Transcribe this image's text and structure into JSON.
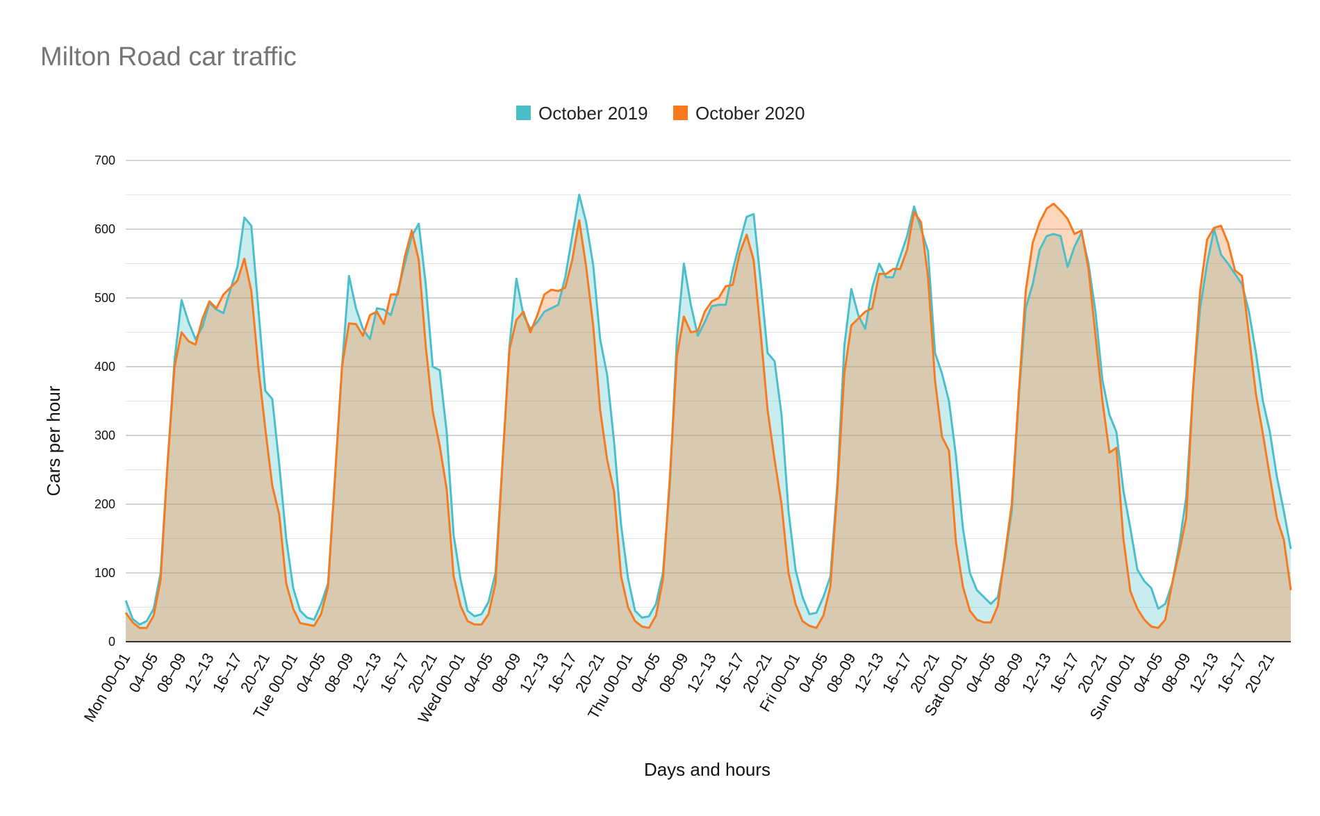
{
  "chart_data": {
    "type": "area",
    "title": "Milton Road car traffic",
    "xlabel": "Days and hours",
    "ylabel": "Cars per hour",
    "ylim": [
      0,
      700
    ],
    "yticks": [
      0,
      100,
      200,
      300,
      400,
      500,
      600,
      700
    ],
    "grid": true,
    "legend_position": "top",
    "x_tick_labels": [
      "Mon 00–01",
      "04–05",
      "08–09",
      "12–13",
      "16–17",
      "20–21",
      "Tue 00–01",
      "04–05",
      "08–09",
      "12–13",
      "16–17",
      "20–21",
      "Wed 00–01",
      "04–05",
      "08–09",
      "12–13",
      "16–17",
      "20–21",
      "Thu 00–01",
      "04–05",
      "08–09",
      "12–13",
      "16–17",
      "20–21",
      "Fri 00–01",
      "04–05",
      "08–09",
      "12–13",
      "16–17",
      "20–21",
      "Sat 00–01",
      "04–05",
      "08–09",
      "12–13",
      "16–17",
      "20–21",
      "Sun 00–01",
      "04–05",
      "08–09",
      "12–13",
      "16–17",
      "20–21"
    ],
    "series": [
      {
        "name": "October 2019",
        "color": "#4bbfc9",
        "values": [
          60,
          33,
          25,
          30,
          48,
          100,
          260,
          410,
          497,
          465,
          440,
          458,
          493,
          483,
          478,
          512,
          545,
          617,
          605,
          485,
          365,
          353,
          258,
          150,
          78,
          45,
          35,
          32,
          55,
          85,
          240,
          400,
          532,
          485,
          455,
          440,
          485,
          483,
          475,
          510,
          550,
          590,
          608,
          520,
          400,
          395,
          305,
          155,
          90,
          45,
          37,
          40,
          58,
          100,
          260,
          430,
          528,
          475,
          455,
          465,
          480,
          485,
          490,
          530,
          590,
          650,
          610,
          548,
          440,
          388,
          290,
          170,
          92,
          45,
          35,
          37,
          55,
          100,
          230,
          440,
          550,
          490,
          445,
          465,
          488,
          490,
          490,
          540,
          580,
          618,
          622,
          525,
          420,
          408,
          330,
          190,
          105,
          65,
          40,
          42,
          65,
          95,
          230,
          430,
          513,
          475,
          455,
          515,
          550,
          530,
          530,
          560,
          590,
          633,
          600,
          568,
          420,
          390,
          350,
          270,
          165,
          100,
          75,
          65,
          55,
          65,
          120,
          190,
          355,
          485,
          520,
          570,
          590,
          593,
          590,
          545,
          575,
          595,
          550,
          480,
          380,
          330,
          305,
          220,
          165,
          105,
          88,
          78,
          48,
          55,
          85,
          140,
          210,
          370,
          485,
          550,
          600,
          563,
          550,
          535,
          520,
          480,
          420,
          350,
          305,
          240,
          190,
          135
        ]
      },
      {
        "name": "October 2020",
        "color": "#f77a1f",
        "values": [
          42,
          28,
          20,
          20,
          38,
          90,
          260,
          400,
          450,
          437,
          432,
          470,
          495,
          485,
          505,
          515,
          525,
          557,
          510,
          400,
          310,
          227,
          185,
          85,
          48,
          27,
          25,
          23,
          40,
          80,
          240,
          400,
          463,
          462,
          445,
          475,
          480,
          462,
          505,
          505,
          560,
          598,
          555,
          430,
          335,
          285,
          222,
          95,
          52,
          30,
          25,
          25,
          40,
          85,
          260,
          425,
          468,
          480,
          450,
          475,
          505,
          512,
          510,
          515,
          555,
          613,
          545,
          460,
          337,
          265,
          218,
          95,
          50,
          30,
          22,
          20,
          38,
          90,
          240,
          415,
          473,
          450,
          452,
          480,
          495,
          500,
          517,
          519,
          565,
          592,
          555,
          450,
          337,
          265,
          200,
          100,
          55,
          30,
          23,
          20,
          38,
          80,
          220,
          390,
          460,
          470,
          480,
          485,
          535,
          535,
          542,
          542,
          570,
          625,
          610,
          530,
          380,
          298,
          278,
          145,
          80,
          45,
          32,
          28,
          28,
          52,
          125,
          200,
          360,
          510,
          580,
          610,
          630,
          637,
          627,
          615,
          593,
          598,
          542,
          445,
          350,
          275,
          282,
          150,
          73,
          48,
          32,
          22,
          20,
          32,
          85,
          130,
          180,
          370,
          510,
          585,
          602,
          605,
          580,
          540,
          532,
          445,
          360,
          302,
          240,
          180,
          148,
          75
        ]
      }
    ]
  }
}
